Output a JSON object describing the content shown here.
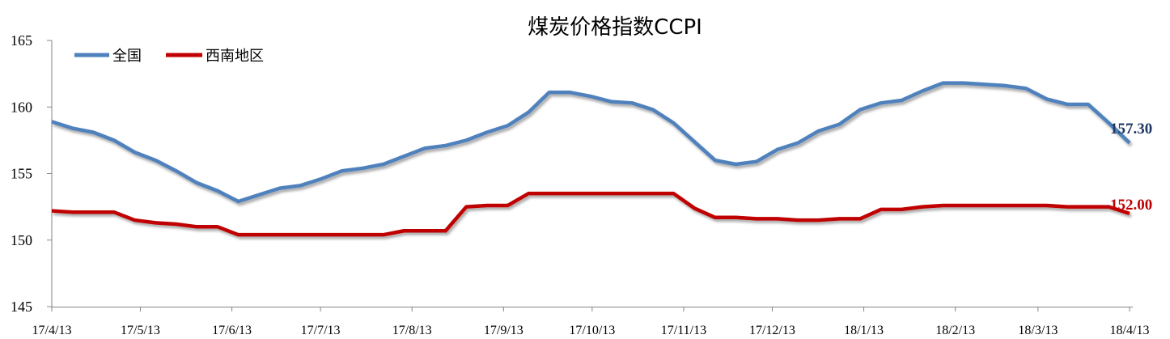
{
  "chart_data": {
    "type": "line",
    "title": "煤炭价格指数CCPI",
    "xlabel": "",
    "ylabel": "",
    "ylim": [
      145,
      165
    ],
    "yticks": [
      "145",
      "150",
      "155",
      "160",
      "165"
    ],
    "xticks": [
      "17/4/13",
      "17/5/13",
      "17/6/13",
      "17/7/13",
      "17/8/13",
      "17/9/13",
      "17/10/13",
      "17/11/13",
      "17/12/13",
      "18/1/13",
      "18/2/13",
      "18/3/13",
      "18/4/13"
    ],
    "x_range": [
      "17/4/13",
      "18/4/13"
    ],
    "frequency": "weekly",
    "grid": false,
    "legend": "top-left",
    "series": [
      {
        "name": "全国",
        "color": "#4f81bd",
        "end_label": "157.30",
        "values": [
          158.9,
          158.4,
          158.1,
          157.5,
          156.6,
          156.0,
          155.2,
          154.3,
          153.7,
          152.9,
          153.4,
          153.9,
          154.1,
          154.6,
          155.2,
          155.4,
          155.7,
          156.3,
          156.9,
          157.1,
          157.5,
          158.1,
          158.6,
          159.6,
          161.1,
          161.1,
          160.8,
          160.4,
          160.3,
          159.8,
          158.8,
          157.4,
          156.0,
          155.7,
          155.9,
          156.8,
          157.3,
          158.2,
          158.7,
          159.8,
          160.3,
          160.5,
          161.2,
          161.8,
          161.8,
          161.7,
          161.6,
          161.4,
          160.6,
          160.2,
          160.2,
          158.8,
          157.3
        ]
      },
      {
        "name": "西南地区",
        "color": "#c00000",
        "end_label": "152.00",
        "values": [
          152.2,
          152.1,
          152.1,
          152.1,
          151.5,
          151.3,
          151.2,
          151.0,
          151.0,
          150.4,
          150.4,
          150.4,
          150.4,
          150.4,
          150.4,
          150.4,
          150.4,
          150.7,
          150.7,
          150.7,
          152.5,
          152.6,
          152.6,
          153.5,
          153.5,
          153.5,
          153.5,
          153.5,
          153.5,
          153.5,
          153.5,
          152.4,
          151.7,
          151.7,
          151.6,
          151.6,
          151.5,
          151.5,
          151.6,
          151.6,
          152.3,
          152.3,
          152.5,
          152.6,
          152.6,
          152.6,
          152.6,
          152.6,
          152.6,
          152.5,
          152.5,
          152.5,
          152.0
        ]
      }
    ]
  }
}
